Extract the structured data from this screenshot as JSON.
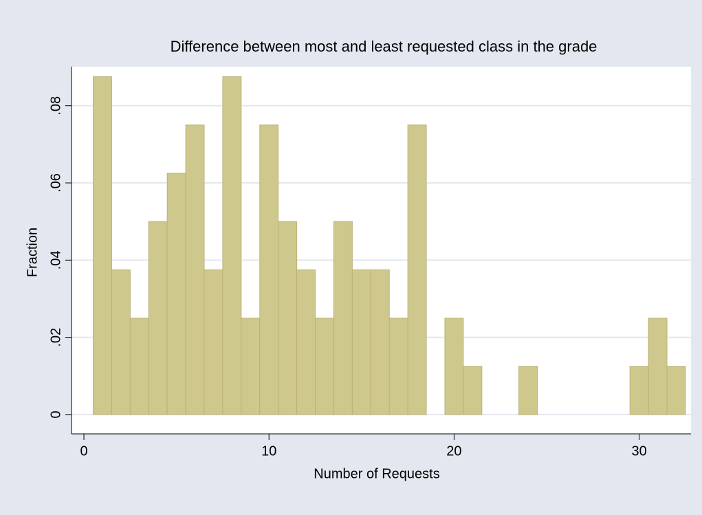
{
  "chart_data": {
    "type": "histogram",
    "title": "Difference between most and least requested class in the grade",
    "x_label": "Number of Requests",
    "y_label": "Fraction",
    "bins": [
      0.5,
      1.5,
      2.5,
      3.5,
      4.5,
      5.5,
      6.5,
      7.5,
      8.5,
      9.5,
      10.5,
      11.5,
      12.5,
      13.5,
      14.5,
      15.5,
      16.5,
      17.5,
      18.5,
      19.5,
      20.5,
      21.5,
      22.5,
      23.5,
      24.5,
      25.5,
      26.5,
      27.5,
      28.5,
      29.5,
      30.5,
      31.5,
      32.5
    ],
    "values": [
      0.0875,
      0.0375,
      0.025,
      0.05,
      0.0625,
      0.075,
      0.0375,
      0.0875,
      0.025,
      0.075,
      0.05,
      0.0375,
      0.025,
      0.05,
      0.0375,
      0.0375,
      0.025,
      0.075,
      0,
      0.025,
      0.0125,
      0,
      0,
      0.0125,
      0,
      0,
      0,
      0,
      0,
      0.0125,
      0.025,
      0.0125
    ],
    "color": "#cfc88c",
    "xlim": [
      -0.67,
      32.8
    ],
    "ylim": [
      -0.005,
      0.0901
    ],
    "xticks": [
      0,
      10,
      20,
      30
    ],
    "yticks": [
      0,
      {
        "value": 0.02,
        "label": ".02"
      },
      {
        "value": 0.04,
        "label": ".04"
      },
      {
        "value": 0.06,
        "label": ".06"
      },
      {
        "value": 0.08,
        "label": ".08"
      }
    ],
    "grid": true
  }
}
